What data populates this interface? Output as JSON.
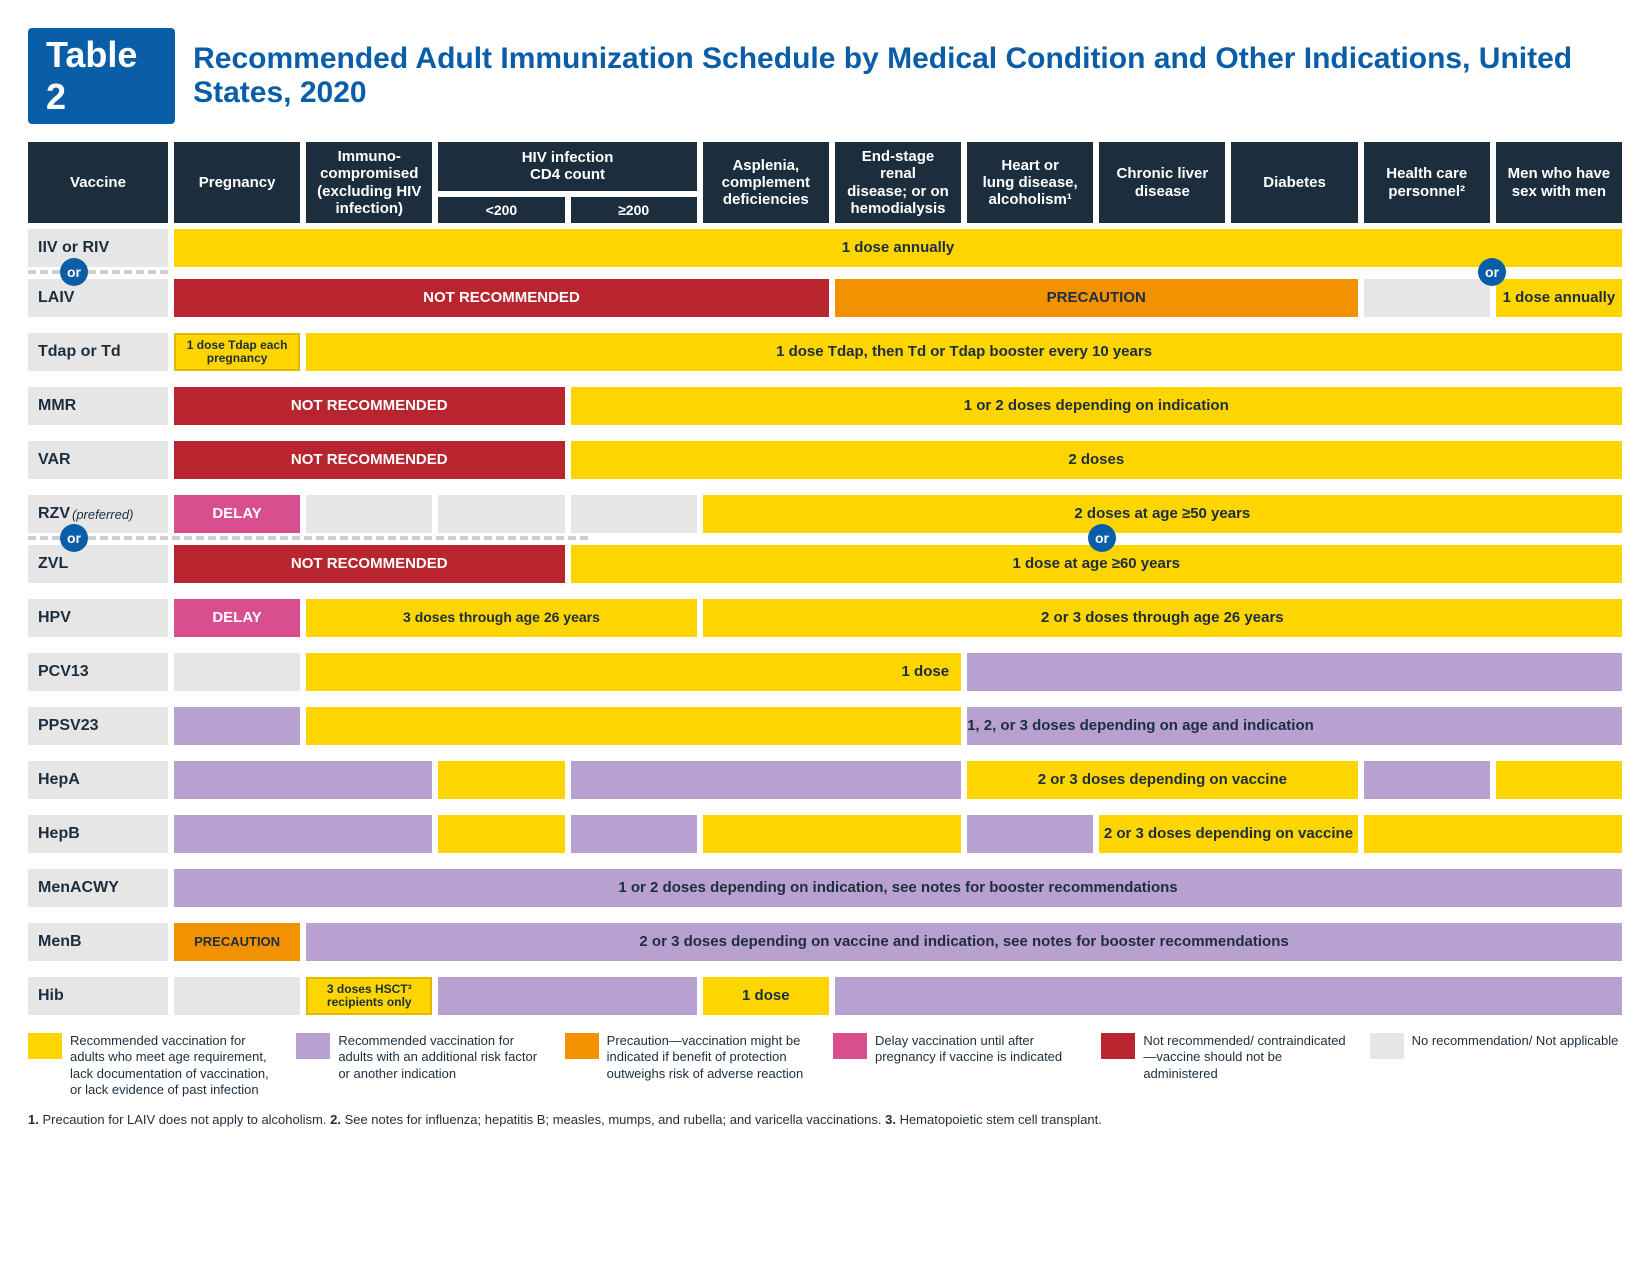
{
  "title": {
    "badge": "Table 2",
    "text": "Recommended Adult Immunization Schedule by Medical Condition and Other Indications, United States, 2020"
  },
  "headers": {
    "vaccine": "Vaccine",
    "cols": [
      "Pregnancy",
      "Immuno-\ncompromised\n(excluding HIV\ninfection)",
      "HIV infection\nCD4 count",
      "Asplenia,\ncomplement\ndeficiencies",
      "End-stage\nrenal\ndisease; or on\nhemodialysis",
      "Heart or\nlung disease,\nalcoholism¹",
      "Chronic liver\ndisease",
      "Diabetes",
      "Health care\npersonnel²",
      "Men who have\nsex with men"
    ],
    "hiv_sub": [
      "<200",
      "≥200"
    ]
  },
  "or": "or",
  "labels": {
    "iiv": "IIV or RIV",
    "laiv": "LAIV",
    "tdap": "Tdap or Td",
    "mmr": "MMR",
    "var": "VAR",
    "rzv": "RZV",
    "rzv_pref": "(preferred)",
    "zvl": "ZVL",
    "hpv": "HPV",
    "pcv13": "PCV13",
    "ppsv23": "PPSV23",
    "hepa": "HepA",
    "hepb": "HepB",
    "menacwy": "MenACWY",
    "menb": "MenB",
    "hib": "Hib"
  },
  "txt": {
    "dose_annually": "1 dose annually",
    "not_rec": "NOT RECOMMENDED",
    "precaution": "PRECAUTION",
    "tdap_preg": "1 dose Tdap each pregnancy",
    "tdap_rest": "1 dose Tdap, then Td or Tdap booster every 10 years",
    "mmr": "1 or 2 doses depending on indication",
    "var": "2 doses",
    "rzv": "2 doses at age ≥50 years",
    "zvl": "1 dose at age ≥60 years",
    "hpv3": "3 doses through age 26 years",
    "hpv23": "2 or 3 doses through age 26 years",
    "pcv13": "1 dose",
    "ppsv23": "1, 2, or 3 doses depending on age and indication",
    "hep": "2 or 3 doses depending on vaccine",
    "menacwy": "1 or 2 doses depending on indication, see notes for booster recommendations",
    "menb": "2 or 3 doses depending on vaccine and indication, see notes for booster recommendations",
    "delay": "DELAY",
    "hib3": "3 doses HSCT³ recipients only",
    "hib1": "1 dose"
  },
  "legend": [
    {
      "color": "#ffd500",
      "text": "Recommended vaccination for adults who meet age requirement, lack documentation of vaccination, or lack evidence of past infection"
    },
    {
      "color": "#b8a1d0",
      "text": "Recommended vaccination for adults with an additional risk factor or another indication"
    },
    {
      "color": "#f39200",
      "text": "Precaution—vaccination might be indicated if benefit of protection outweighs risk of adverse reaction"
    },
    {
      "color": "#d94e8f",
      "text": "Delay vaccination until after pregnancy if vaccine is indicated"
    },
    {
      "color": "#b8252f",
      "text": "Not recommended/ contraindicated—vaccine should not be administered"
    },
    {
      "color": "#e6e6e6",
      "text": "No recommendation/ Not applicable"
    }
  ],
  "footnotes": {
    "f1": "Precaution for LAIV does not apply to alcoholism.",
    "f2": "See notes for influenza; hepatitis B; measles, mumps, and rubella; and varicella vaccinations.",
    "f3": "Hematopoietic stem cell transplant."
  }
}
